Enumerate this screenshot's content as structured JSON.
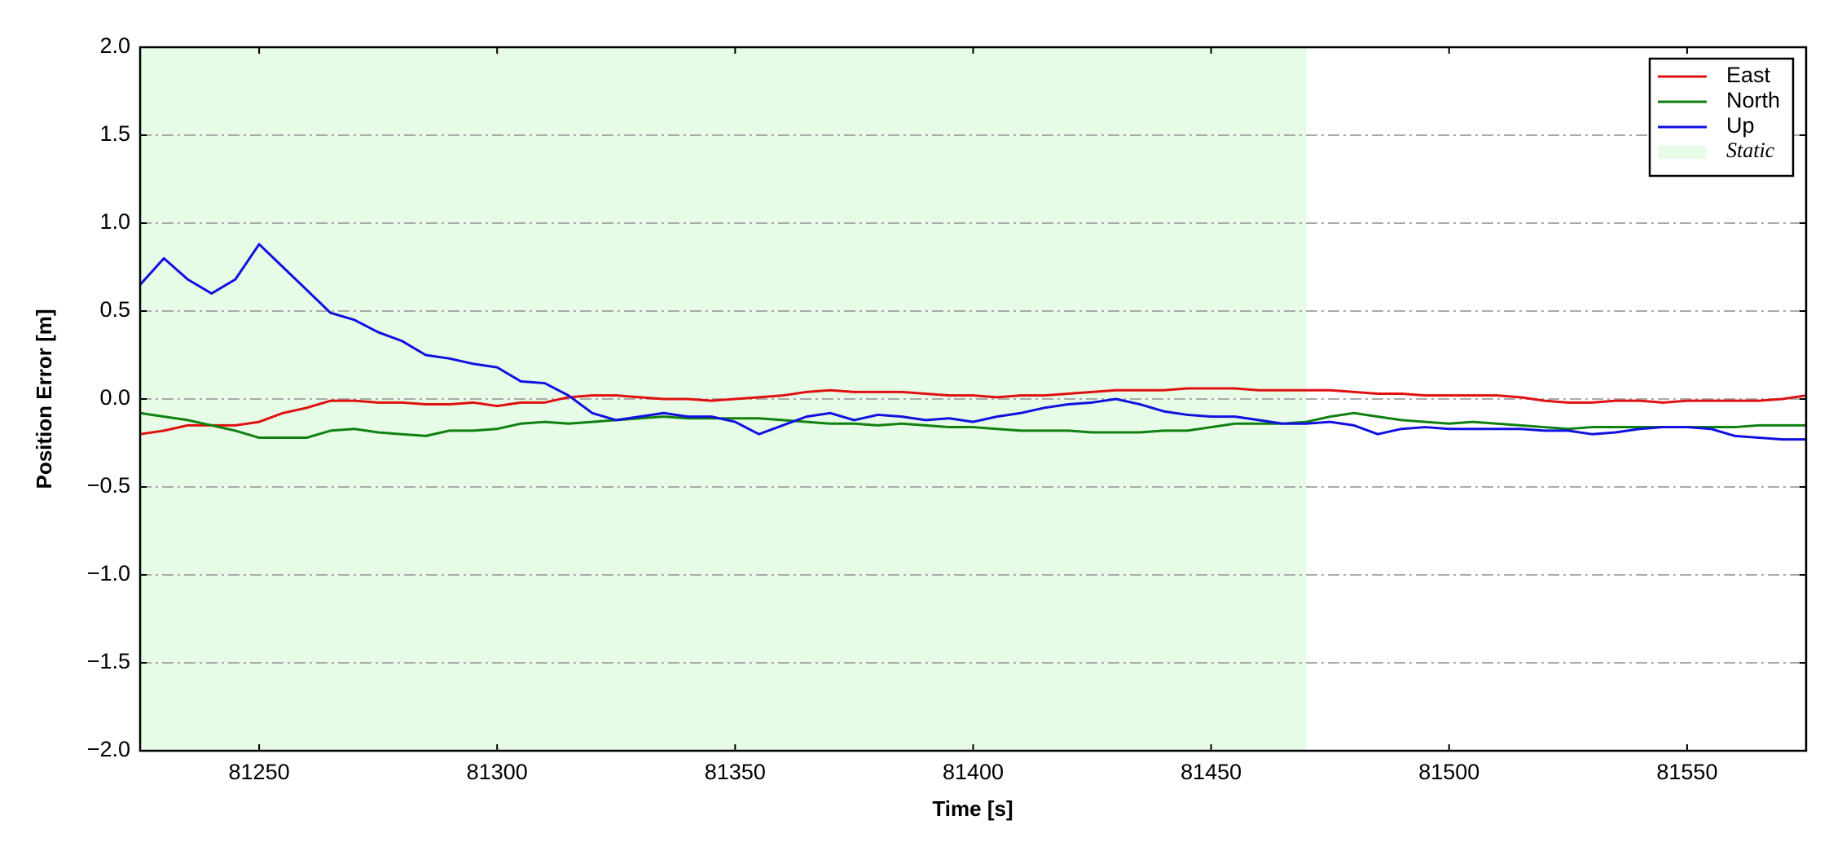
{
  "chart_data": {
    "type": "line",
    "xlabel": "Time [s]",
    "ylabel": "Position Error [m]",
    "xlim": [
      81225,
      81575
    ],
    "ylim": [
      -2.0,
      2.0
    ],
    "xticks": [
      81250,
      81300,
      81350,
      81400,
      81450,
      81500,
      81550
    ],
    "yticks": [
      {
        "value": -2.0,
        "label": "−2.0"
      },
      {
        "value": -1.5,
        "label": "−1.5"
      },
      {
        "value": -1.0,
        "label": "−1.0"
      },
      {
        "value": -0.5,
        "label": "−0.5"
      },
      {
        "value": 0.0,
        "label": "0.0"
      },
      {
        "value": 0.5,
        "label": "0.5"
      },
      {
        "value": 1.0,
        "label": "1.0"
      },
      {
        "value": 1.5,
        "label": "1.5"
      },
      {
        "value": 2.0,
        "label": "2.0"
      }
    ],
    "grid": true,
    "legend": "upper right",
    "span": {
      "name": "Static",
      "x0": 81225,
      "x1": 81470,
      "color": "#e6fce6"
    },
    "x": [
      81225,
      81230,
      81235,
      81240,
      81245,
      81250,
      81255,
      81260,
      81265,
      81270,
      81275,
      81280,
      81285,
      81290,
      81295,
      81300,
      81305,
      81310,
      81315,
      81320,
      81325,
      81330,
      81335,
      81340,
      81345,
      81350,
      81355,
      81360,
      81365,
      81370,
      81375,
      81380,
      81385,
      81390,
      81395,
      81400,
      81405,
      81410,
      81415,
      81420,
      81425,
      81430,
      81435,
      81440,
      81445,
      81450,
      81455,
      81460,
      81465,
      81470,
      81475,
      81480,
      81485,
      81490,
      81495,
      81500,
      81505,
      81510,
      81515,
      81520,
      81525,
      81530,
      81535,
      81540,
      81545,
      81550,
      81555,
      81560,
      81565,
      81570,
      81575
    ],
    "series": [
      {
        "name": "East",
        "color": "#e01010",
        "values": [
          -0.2,
          -0.18,
          -0.15,
          -0.15,
          -0.15,
          -0.13,
          -0.08,
          -0.05,
          -0.01,
          -0.01,
          -0.02,
          -0.02,
          -0.03,
          -0.03,
          -0.02,
          -0.04,
          -0.02,
          -0.02,
          0.01,
          0.02,
          0.02,
          0.01,
          0.0,
          0.0,
          -0.01,
          0.0,
          0.01,
          0.02,
          0.04,
          0.05,
          0.04,
          0.04,
          0.04,
          0.03,
          0.02,
          0.02,
          0.01,
          0.02,
          0.02,
          0.03,
          0.04,
          0.05,
          0.05,
          0.05,
          0.06,
          0.06,
          0.06,
          0.05,
          0.05,
          0.05,
          0.05,
          0.04,
          0.03,
          0.03,
          0.02,
          0.02,
          0.02,
          0.02,
          0.01,
          -0.01,
          -0.02,
          -0.02,
          -0.01,
          -0.01,
          -0.02,
          -0.01,
          -0.01,
          -0.01,
          -0.01,
          0.0,
          0.02
        ]
      },
      {
        "name": "North",
        "color": "#108010",
        "values": [
          -0.08,
          -0.1,
          -0.12,
          -0.15,
          -0.18,
          -0.22,
          -0.22,
          -0.22,
          -0.18,
          -0.17,
          -0.19,
          -0.2,
          -0.21,
          -0.18,
          -0.18,
          -0.17,
          -0.14,
          -0.13,
          -0.14,
          -0.13,
          -0.12,
          -0.11,
          -0.1,
          -0.11,
          -0.11,
          -0.11,
          -0.11,
          -0.12,
          -0.13,
          -0.14,
          -0.14,
          -0.15,
          -0.14,
          -0.15,
          -0.16,
          -0.16,
          -0.17,
          -0.18,
          -0.18,
          -0.18,
          -0.19,
          -0.19,
          -0.19,
          -0.18,
          -0.18,
          -0.16,
          -0.14,
          -0.14,
          -0.14,
          -0.13,
          -0.1,
          -0.08,
          -0.1,
          -0.12,
          -0.13,
          -0.14,
          -0.13,
          -0.14,
          -0.15,
          -0.16,
          -0.17,
          -0.16,
          -0.16,
          -0.16,
          -0.16,
          -0.16,
          -0.16,
          -0.16,
          -0.15,
          -0.15,
          -0.15
        ]
      },
      {
        "name": "Up",
        "color": "#1010e0",
        "values": [
          0.65,
          0.8,
          0.68,
          0.6,
          0.68,
          0.88,
          0.75,
          0.62,
          0.49,
          0.45,
          0.38,
          0.33,
          0.25,
          0.23,
          0.2,
          0.18,
          0.1,
          0.09,
          0.02,
          -0.08,
          -0.12,
          -0.1,
          -0.08,
          -0.1,
          -0.1,
          -0.13,
          -0.2,
          -0.15,
          -0.1,
          -0.08,
          -0.12,
          -0.09,
          -0.1,
          -0.12,
          -0.11,
          -0.13,
          -0.1,
          -0.08,
          -0.05,
          -0.03,
          -0.02,
          0.0,
          -0.03,
          -0.07,
          -0.09,
          -0.1,
          -0.1,
          -0.12,
          -0.14,
          -0.14,
          -0.13,
          -0.15,
          -0.2,
          -0.17,
          -0.16,
          -0.17,
          -0.17,
          -0.17,
          -0.17,
          -0.18,
          -0.18,
          -0.2,
          -0.19,
          -0.17,
          -0.16,
          -0.16,
          -0.17,
          -0.21,
          -0.22,
          -0.23,
          -0.23
        ]
      }
    ]
  }
}
